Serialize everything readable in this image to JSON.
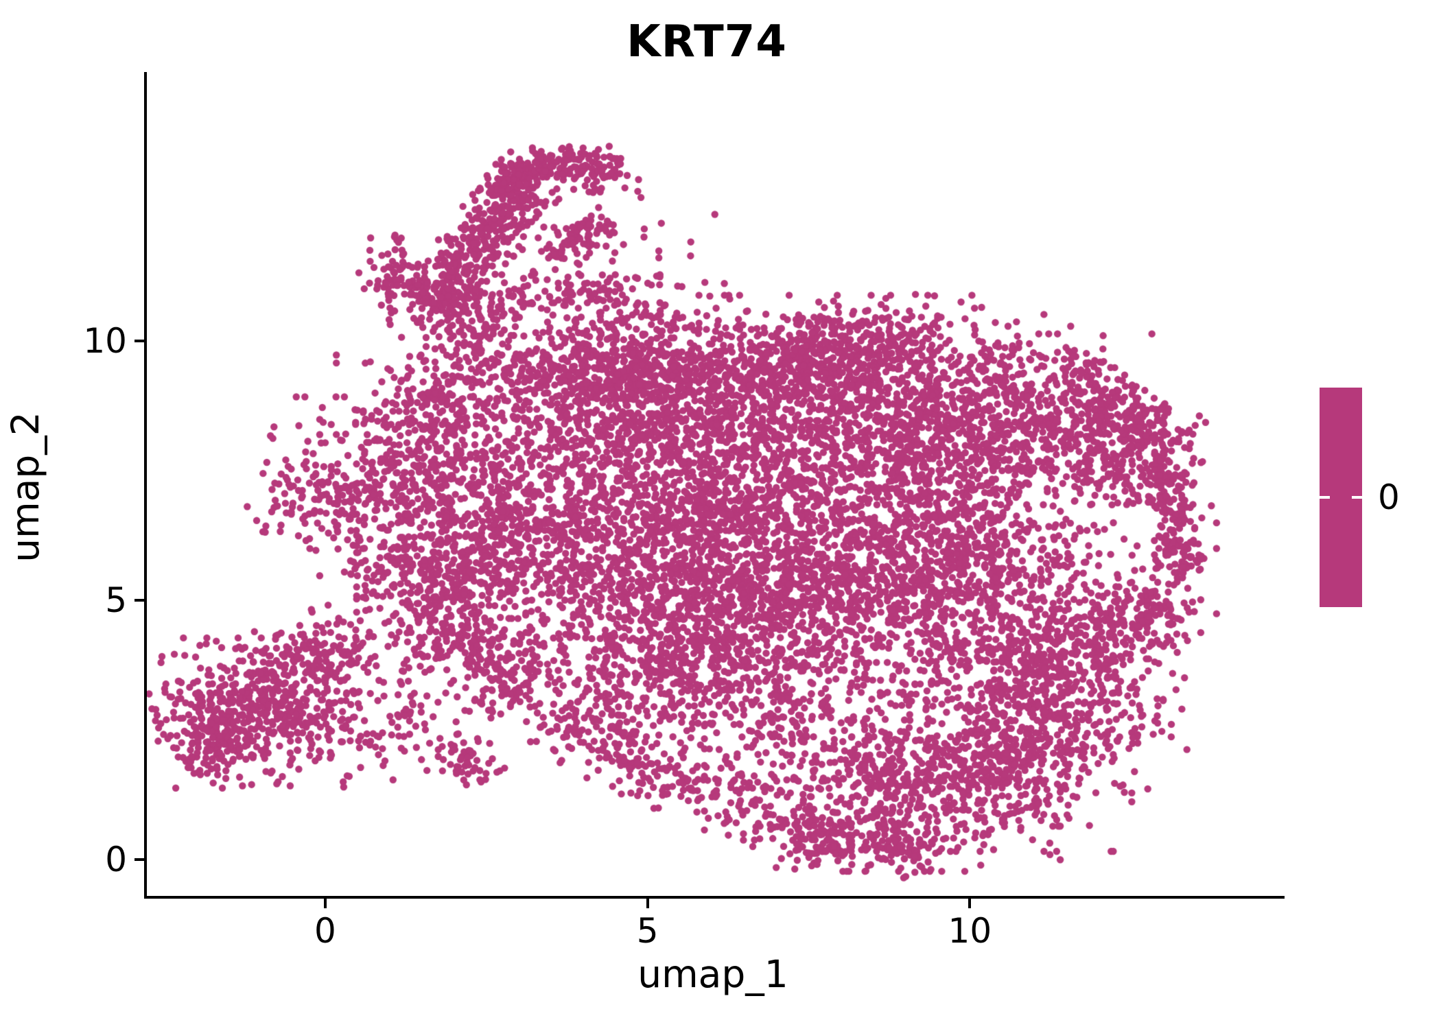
{
  "title": "KRT74",
  "axes": {
    "xlabel": "umap_1",
    "ylabel": "umap_2",
    "x_ticks": [
      0,
      5,
      10
    ],
    "y_ticks": [
      0,
      5,
      10
    ]
  },
  "colorbar": {
    "label": "0",
    "color": "#B6397B"
  },
  "colors": {
    "background": "#FFFFFF",
    "axis": "#000000",
    "point": "#B6397B"
  },
  "chart_data": {
    "type": "scatter",
    "title": "KRT74",
    "xlabel": "umap_1",
    "ylabel": "umap_2",
    "xlim": [
      -2.81,
      14.84
    ],
    "ylim": [
      -0.7,
      15.19
    ],
    "x_ticks": [
      0,
      5,
      10
    ],
    "y_ticks": [
      0,
      5,
      10
    ],
    "grid": false,
    "legend_position": "right",
    "colorbar_values": [
      0
    ],
    "point_color": "#B6397B",
    "point_radius_px": 5.2,
    "n_points_approx": 13400,
    "description": "UMAP embedding of single cells; KRT74 expression is 0 in all cells so every point shares one color. Generative cluster summary of the point cloud in data coordinates:",
    "clusters": [
      {
        "type": "band",
        "x1": 1.5,
        "y1": 10.7,
        "x2": 3.2,
        "y2": 13.05,
        "w": 0.28,
        "n": 400
      },
      {
        "type": "band",
        "x1": 2.6,
        "y1": 13.1,
        "x2": 3.95,
        "y2": 13.5,
        "w": 0.2,
        "n": 170
      },
      {
        "type": "blob",
        "cx": 4.2,
        "cy": 13.32,
        "sx": 0.28,
        "sy": 0.2,
        "rot": -10,
        "n": 70
      },
      {
        "type": "band",
        "x1": 3.45,
        "y1": 11.78,
        "x2": 4.35,
        "y2": 12.22,
        "w": 0.17,
        "n": 90
      },
      {
        "type": "blob",
        "cx": 1.08,
        "cy": 11.3,
        "sx": 0.25,
        "sy": 0.38,
        "rot": 15,
        "n": 70
      },
      {
        "type": "blob",
        "cx": 2.2,
        "cy": 10.6,
        "sx": 0.55,
        "sy": 0.33,
        "rot": 10,
        "n": 150
      },
      {
        "type": "blob",
        "cx": 4.0,
        "cy": 10.9,
        "sx": 0.5,
        "sy": 0.4,
        "rot": 0,
        "n": 110
      },
      {
        "type": "blob",
        "cx": 5.0,
        "cy": 11.7,
        "sx": 0.8,
        "sy": 0.65,
        "rot": 0,
        "n": 20
      },
      {
        "type": "band",
        "x1": 3.4,
        "y1": 9.35,
        "x2": 9.3,
        "y2": 9.95,
        "w": 0.42,
        "n": 680
      },
      {
        "type": "blob",
        "cx": 4.6,
        "cy": 8.9,
        "sx": 1.0,
        "sy": 0.8,
        "rot": 0,
        "n": 540
      },
      {
        "type": "blob",
        "cx": 7.0,
        "cy": 8.7,
        "sx": 1.3,
        "sy": 0.95,
        "rot": 0,
        "n": 680
      },
      {
        "type": "blob",
        "cx": 9.3,
        "cy": 8.8,
        "sx": 1.1,
        "sy": 0.85,
        "rot": 0,
        "n": 540
      },
      {
        "type": "blob",
        "cx": 10.9,
        "cy": 8.3,
        "sx": 0.9,
        "sy": 0.8,
        "rot": 0,
        "n": 420
      },
      {
        "type": "band",
        "x1": 11.4,
        "y1": 9.5,
        "x2": 13.05,
        "y2": 7.8,
        "w": 0.3,
        "n": 190
      },
      {
        "type": "blob",
        "cx": 2.2,
        "cy": 7.8,
        "sx": 0.9,
        "sy": 1.0,
        "rot": 0,
        "n": 450
      },
      {
        "type": "blob",
        "cx": 0.6,
        "cy": 7.2,
        "sx": 0.7,
        "sy": 0.75,
        "rot": 0,
        "n": 260
      },
      {
        "type": "blob",
        "cx": -0.45,
        "cy": 7.0,
        "sx": 0.35,
        "sy": 0.45,
        "rot": 0,
        "n": 60
      },
      {
        "type": "band",
        "x1": 0.9,
        "y1": 8.2,
        "x2": 2.6,
        "y2": 9.9,
        "w": 0.35,
        "n": 150
      },
      {
        "type": "blob",
        "cx": 2.4,
        "cy": 5.9,
        "sx": 0.85,
        "sy": 0.8,
        "rot": 0,
        "n": 400
      },
      {
        "type": "blob",
        "cx": 1.3,
        "cy": 5.4,
        "sx": 0.5,
        "sy": 0.5,
        "rot": 0,
        "n": 120
      },
      {
        "type": "band",
        "x1": 1.8,
        "y1": 4.9,
        "x2": 3.1,
        "y2": 3.1,
        "w": 0.38,
        "n": 200
      },
      {
        "type": "blob",
        "cx": 2.05,
        "cy": 1.95,
        "sx": 0.3,
        "sy": 0.22,
        "rot": 0,
        "n": 55
      },
      {
        "type": "blob",
        "cx": 2.7,
        "cy": 3.5,
        "sx": 0.7,
        "sy": 0.6,
        "rot": 0,
        "n": 65
      },
      {
        "type": "blob",
        "cx": 4.6,
        "cy": 6.6,
        "sx": 1.2,
        "sy": 1.2,
        "rot": 0,
        "n": 800
      },
      {
        "type": "blob",
        "cx": 6.6,
        "cy": 6.5,
        "sx": 1.2,
        "sy": 1.2,
        "rot": 0,
        "n": 800
      },
      {
        "type": "blob",
        "cx": 5.6,
        "cy": 4.7,
        "sx": 1.1,
        "sy": 0.9,
        "rot": 0,
        "n": 520
      },
      {
        "type": "blob",
        "cx": 7.7,
        "cy": 4.9,
        "sx": 1.2,
        "sy": 1.1,
        "rot": 0,
        "n": 640
      },
      {
        "type": "blob",
        "cx": 6.4,
        "cy": 3.4,
        "sx": 1.0,
        "sy": 0.6,
        "rot": -12,
        "n": 210
      },
      {
        "type": "blob",
        "cx": 5.0,
        "cy": 3.2,
        "sx": 0.8,
        "sy": 0.5,
        "rot": -18,
        "n": 120
      },
      {
        "type": "blob",
        "cx": 9.3,
        "cy": 6.4,
        "sx": 1.0,
        "sy": 1.2,
        "rot": 0,
        "n": 640
      },
      {
        "type": "blob",
        "cx": 10.3,
        "cy": 5.0,
        "sx": 0.8,
        "sy": 0.9,
        "rot": 0,
        "n": 390
      },
      {
        "type": "band",
        "x1": 12.95,
        "y1": 7.5,
        "x2": 13.28,
        "y2": 5.5,
        "w": 0.2,
        "n": 150
      },
      {
        "type": "blob",
        "cx": 12.35,
        "cy": 7.9,
        "sx": 0.55,
        "sy": 0.5,
        "rot": 0,
        "n": 180
      },
      {
        "type": "blob",
        "cx": 11.6,
        "cy": 5.9,
        "sx": 0.95,
        "sy": 1.1,
        "rot": 0,
        "n": 100
      },
      {
        "type": "band",
        "x1": 10.6,
        "y1": 3.4,
        "x2": 12.7,
        "y2": 4.8,
        "w": 0.45,
        "n": 310
      },
      {
        "type": "blob",
        "cx": 12.85,
        "cy": 4.9,
        "sx": 0.3,
        "sy": 0.5,
        "rot": 0,
        "n": 80
      },
      {
        "type": "band",
        "x1": 3.6,
        "y1": 2.7,
        "x2": 6.6,
        "y2": 0.95,
        "w": 0.33,
        "n": 250
      },
      {
        "type": "blob",
        "cx": 8.6,
        "cy": 1.5,
        "sx": 1.2,
        "sy": 0.75,
        "rot": 0,
        "n": 590
      },
      {
        "type": "blob",
        "cx": 10.4,
        "cy": 2.0,
        "sx": 0.9,
        "sy": 0.8,
        "rot": 0,
        "n": 420
      },
      {
        "type": "band",
        "x1": 6.9,
        "y1": 0.5,
        "x2": 9.4,
        "y2": 0.25,
        "w": 0.28,
        "n": 200
      },
      {
        "type": "blob",
        "cx": 11.6,
        "cy": 2.9,
        "sx": 0.75,
        "sy": 0.7,
        "rot": 0,
        "n": 250
      },
      {
        "type": "blob",
        "cx": -1.15,
        "cy": 2.85,
        "sx": 0.72,
        "sy": 0.62,
        "rot": 0,
        "n": 470
      },
      {
        "type": "blob",
        "cx": -0.1,
        "cy": 3.9,
        "sx": 0.5,
        "sy": 0.42,
        "rot": 20,
        "n": 165
      },
      {
        "type": "blob",
        "cx": -1.9,
        "cy": 2.3,
        "sx": 0.28,
        "sy": 0.4,
        "rot": 0,
        "n": 80
      },
      {
        "type": "blob",
        "cx": 0.35,
        "cy": 2.55,
        "sx": 0.5,
        "sy": 0.5,
        "rot": 0,
        "n": 60
      },
      {
        "type": "band",
        "x1": 0.6,
        "y1": 3.4,
        "x2": 1.7,
        "y2": 4.3,
        "w": 0.45,
        "n": 50
      },
      {
        "type": "blob",
        "cx": 1.15,
        "cy": 2.6,
        "sx": 0.3,
        "sy": 0.2,
        "rot": 0,
        "n": 16
      }
    ]
  }
}
